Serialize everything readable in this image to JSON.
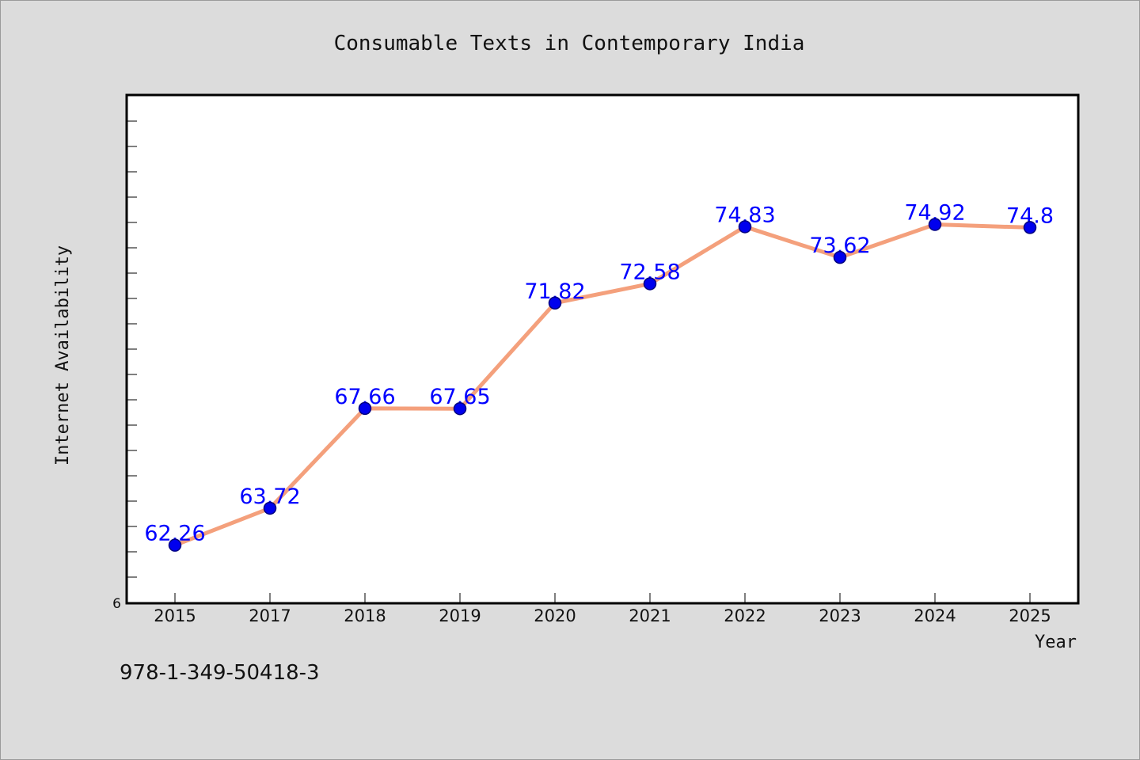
{
  "footer_code": "978-1-349-50418-3",
  "chart_data": {
    "type": "line",
    "title": "Consumable Texts in Contemporary India",
    "xlabel": "Year",
    "ylabel": "Internet Availability",
    "categories": [
      "2015",
      "2017",
      "2018",
      "2019",
      "2020",
      "2021",
      "2022",
      "2023",
      "2024",
      "2025"
    ],
    "series": [
      {
        "values": [
          62.26,
          63.72,
          67.66,
          67.65,
          71.82,
          72.58,
          74.83,
          73.62,
          74.92,
          74.8
        ],
        "labels": [
          "62.26",
          "63.72",
          "67.66",
          "67.65",
          "71.82",
          "72.58",
          "74.83",
          "73.62",
          "74.92",
          "74.8"
        ]
      }
    ],
    "ylim": [
      60,
      80
    ],
    "y_tick_label": "6",
    "grid": false,
    "legend": "none",
    "colors": {
      "line": "#f4a07c",
      "marker": "#0000ee",
      "marker_edge": "#000080",
      "data_label": "#0000ff",
      "plot_bg": "#ffffff",
      "page_bg": "#dcdcdc"
    }
  }
}
